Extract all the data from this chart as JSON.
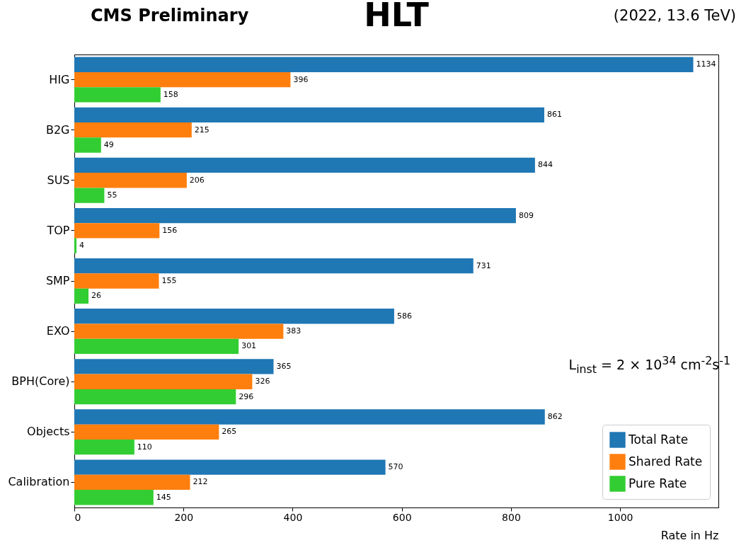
{
  "chart_data": {
    "type": "bar",
    "orientation": "horizontal",
    "title": "HLT",
    "xlabel": "Rate in Hz",
    "categories": [
      "HIG",
      "B2G",
      "SUS",
      "TOP",
      "SMP",
      "EXO",
      "BPH(Core)",
      "Objects",
      "Calibration"
    ],
    "series": [
      {
        "name": "Total Rate",
        "color": "#1f77b4",
        "values": [
          1134,
          861,
          844,
          809,
          731,
          586,
          365,
          862,
          570
        ]
      },
      {
        "name": "Shared Rate",
        "color": "#ff7f0e",
        "values": [
          396,
          215,
          206,
          156,
          155,
          383,
          326,
          265,
          212
        ]
      },
      {
        "name": "Pure Rate",
        "color": "#32cd32",
        "values": [
          158,
          49,
          55,
          4,
          26,
          301,
          296,
          110,
          145
        ]
      }
    ],
    "xlim": [
      0,
      1180
    ],
    "xticks": [
      0,
      200,
      400,
      600,
      800,
      1000
    ],
    "data_labels": true,
    "grid": false,
    "legend": "bottom right",
    "annotations": [
      "CMS Preliminary",
      "(2022, 13.6 TeV)",
      "L$_{inst}$ = 2 × 10$^{34}$ cm$^{-2}$s$^{-1}$"
    ]
  }
}
